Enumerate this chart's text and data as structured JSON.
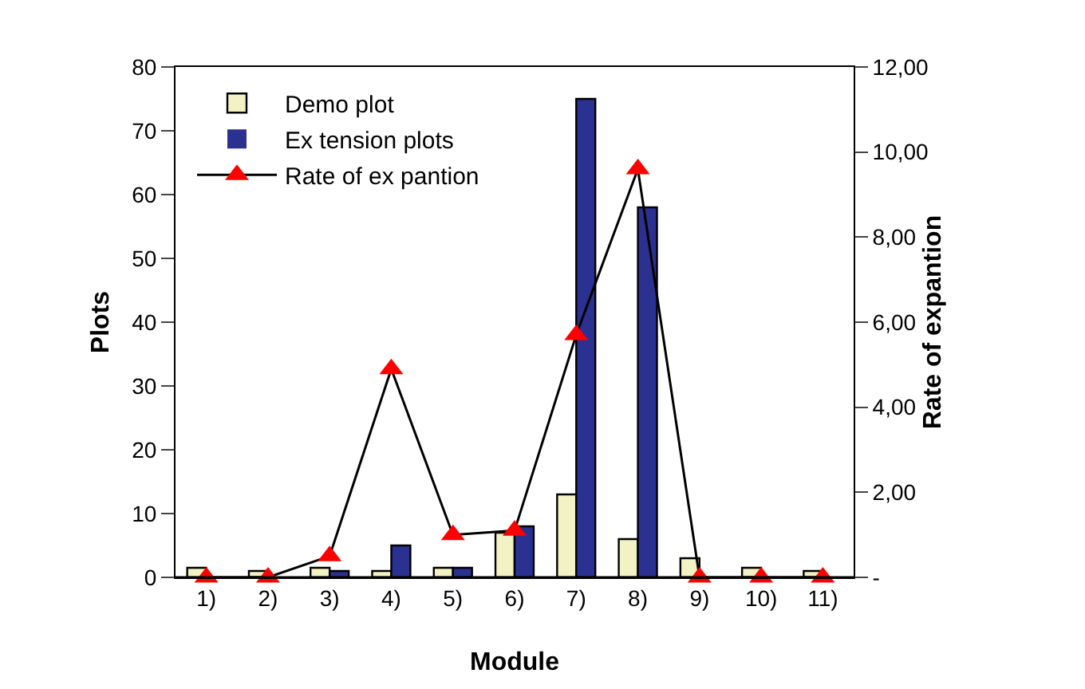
{
  "chart_data": {
    "type": "bar",
    "xlabel": "Module",
    "ylabel": "Plots",
    "y2label": "Rate of expantion",
    "categories": [
      "1)",
      "2)",
      "3)",
      "4)",
      "5)",
      "6)",
      "7)",
      "8)",
      "9)",
      "10)",
      "11)"
    ],
    "series": [
      {
        "name": "Demo plot",
        "color": "#f2f2c4",
        "values": [
          1.5,
          1,
          1.5,
          1,
          1.5,
          7,
          13,
          6,
          3,
          1.5,
          1
        ]
      },
      {
        "name": "Ex tension plots",
        "color": "#2b3190",
        "values": [
          0,
          0,
          1,
          5,
          1.5,
          8,
          75,
          58,
          0,
          0,
          0
        ]
      },
      {
        "name": "Rate of ex pantion",
        "type": "line",
        "axis": "y2",
        "color": "#ff0000",
        "marker": "triangle",
        "values": [
          0,
          0,
          0.5,
          4.9,
          1.0,
          1.1,
          5.7,
          9.6,
          0,
          0,
          0
        ]
      }
    ],
    "ylim": [
      0,
      80
    ],
    "yticks": [
      0,
      10,
      20,
      30,
      40,
      50,
      60,
      70,
      80
    ],
    "y2lim": [
      0,
      12
    ],
    "y2ticks": [
      {
        "value": 0,
        "label": "-"
      },
      {
        "value": 2,
        "label": "2,00"
      },
      {
        "value": 4,
        "label": "4,00"
      },
      {
        "value": 6,
        "label": "6,00"
      },
      {
        "value": 8,
        "label": "8,00"
      },
      {
        "value": 10,
        "label": "10,00"
      },
      {
        "value": 12,
        "label": "12,00"
      }
    ],
    "grid": false,
    "legend": "top left"
  }
}
